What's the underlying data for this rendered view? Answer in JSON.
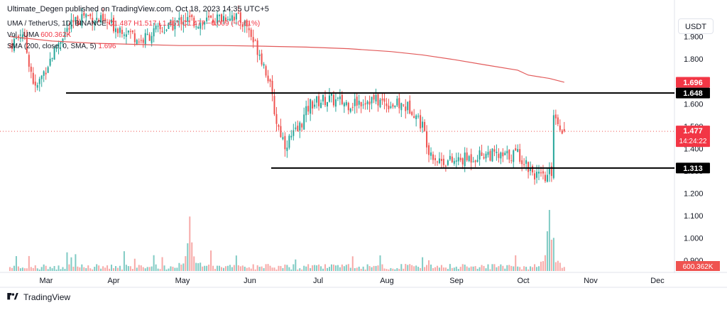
{
  "header": {
    "published_text": "Ultimate_Degen published on TradingView.com, Oct 18, 2023 14:35 UTC+5"
  },
  "legend": {
    "symbol_line": {
      "symbol": "UMA / TetherUS, 1D, BINANCE",
      "open": "O1.487",
      "high": "H1.517",
      "low": "L1.461",
      "close": "C1.477",
      "change": "−0.009 (−0.61%)"
    },
    "vol_line": {
      "label": "Vol · UMA",
      "value": "600.362K"
    },
    "sma_line": {
      "label": "SMA (200, close, 0, SMA, 5)",
      "value": "1.696"
    }
  },
  "currency_button": "USDT",
  "footer": {
    "brand": "TradingView"
  },
  "colors": {
    "up": "#26a69a",
    "down": "#ef5350",
    "sma": "#e25a5a",
    "level": "#000000"
  },
  "chart_data": {
    "type": "candlestick",
    "y_axis": {
      "ticks": [
        "1.900",
        "1.800",
        "1.700",
        "1.600",
        "1.500",
        "1.400",
        "1.300",
        "1.200",
        "1.100",
        "1.000",
        "0.900"
      ],
      "range": [
        0.85,
        2.0
      ]
    },
    "x_axis": {
      "ticks": [
        "Mar",
        "Apr",
        "May",
        "Jun",
        "Jul",
        "Aug",
        "Sep",
        "Oct",
        "Nov",
        "Dec"
      ]
    },
    "price_labels": [
      {
        "text": "1.696",
        "value": 1.696,
        "style": "sma"
      },
      {
        "text": "1.648",
        "value": 1.648,
        "style": "level"
      },
      {
        "text": "1.477",
        "value": 1.477,
        "style": "price",
        "sub": "14:24:22"
      },
      {
        "text": "1.313",
        "value": 1.313,
        "style": "level"
      }
    ],
    "volume_label": "600.362K",
    "horizontal_levels": [
      {
        "value": 1.648,
        "start_month": "Mar"
      },
      {
        "value": 1.313,
        "start_month": "Jun"
      }
    ],
    "sma_200": [
      [
        0,
        1.9
      ],
      [
        20,
        1.88
      ],
      [
        40,
        1.87
      ],
      [
        60,
        1.865
      ],
      [
        80,
        1.86
      ],
      [
        100,
        1.86
      ],
      [
        120,
        1.857
      ],
      [
        140,
        1.853
      ],
      [
        160,
        1.846
      ],
      [
        180,
        1.833
      ],
      [
        195,
        1.818
      ],
      [
        210,
        1.797
      ],
      [
        225,
        1.773
      ],
      [
        240,
        1.75
      ],
      [
        245,
        1.728
      ],
      [
        255,
        1.713
      ],
      [
        262,
        1.696
      ]
    ],
    "price_path": [
      [
        0,
        1.86
      ],
      [
        6,
        1.92
      ],
      [
        12,
        1.66
      ],
      [
        18,
        1.78
      ],
      [
        25,
        1.91
      ],
      [
        35,
        2.0
      ],
      [
        45,
        1.96
      ],
      [
        55,
        1.93
      ],
      [
        62,
        1.88
      ],
      [
        68,
        1.92
      ],
      [
        75,
        1.94
      ],
      [
        82,
        1.98
      ],
      [
        90,
        1.96
      ],
      [
        98,
        1.98
      ],
      [
        105,
        2.0
      ],
      [
        112,
        1.95
      ],
      [
        115,
        1.88
      ],
      [
        118,
        1.83
      ],
      [
        122,
        1.72
      ],
      [
        126,
        1.52
      ],
      [
        130,
        1.42
      ],
      [
        136,
        1.48
      ],
      [
        142,
        1.6
      ],
      [
        150,
        1.62
      ],
      [
        160,
        1.6
      ],
      [
        170,
        1.62
      ],
      [
        180,
        1.6
      ],
      [
        190,
        1.58
      ],
      [
        195,
        1.5
      ],
      [
        198,
        1.4
      ],
      [
        202,
        1.35
      ],
      [
        210,
        1.34
      ],
      [
        218,
        1.36
      ],
      [
        225,
        1.38
      ],
      [
        232,
        1.36
      ],
      [
        240,
        1.38
      ],
      [
        245,
        1.32
      ],
      [
        250,
        1.27
      ],
      [
        253,
        1.26
      ],
      [
        256,
        1.3
      ],
      [
        257,
        1.56
      ],
      [
        259,
        1.52
      ],
      [
        262,
        1.477
      ]
    ],
    "volume_spikes": [
      [
        85,
        70
      ],
      [
        255,
        80
      ]
    ]
  }
}
